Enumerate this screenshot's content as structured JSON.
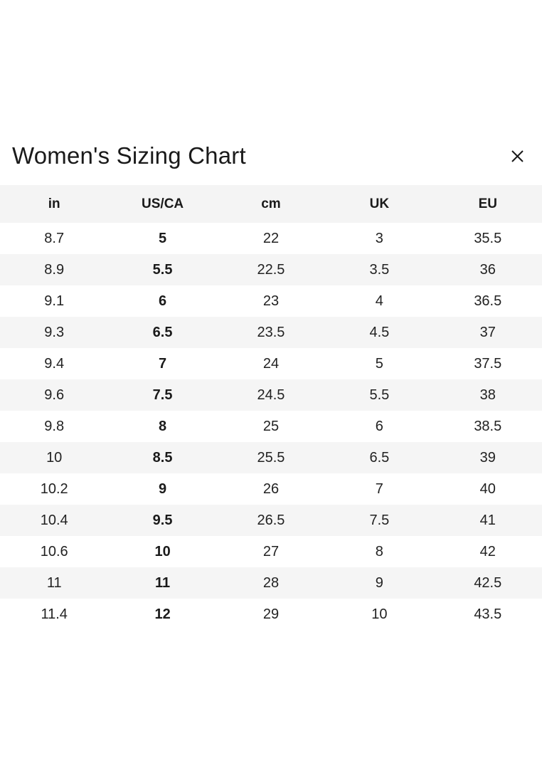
{
  "dialog": {
    "title": "Women's Sizing Chart"
  },
  "table": {
    "columns": [
      "in",
      "US/CA",
      "cm",
      "UK",
      "EU"
    ],
    "bold_column_index": 1,
    "rows": [
      [
        "8.7",
        "5",
        "22",
        "3",
        "35.5"
      ],
      [
        "8.9",
        "5.5",
        "22.5",
        "3.5",
        "36"
      ],
      [
        "9.1",
        "6",
        "23",
        "4",
        "36.5"
      ],
      [
        "9.3",
        "6.5",
        "23.5",
        "4.5",
        "37"
      ],
      [
        "9.4",
        "7",
        "24",
        "5",
        "37.5"
      ],
      [
        "9.6",
        "7.5",
        "24.5",
        "5.5",
        "38"
      ],
      [
        "9.8",
        "8",
        "25",
        "6",
        "38.5"
      ],
      [
        "10",
        "8.5",
        "25.5",
        "6.5",
        "39"
      ],
      [
        "10.2",
        "9",
        "26",
        "7",
        "40"
      ],
      [
        "10.4",
        "9.5",
        "26.5",
        "7.5",
        "41"
      ],
      [
        "10.6",
        "10",
        "27",
        "8",
        "42"
      ],
      [
        "11",
        "11",
        "28",
        "9",
        "42.5"
      ],
      [
        "11.4",
        "12",
        "29",
        "10",
        "43.5"
      ]
    ]
  },
  "colors": {
    "header_bg": "#f4f4f4",
    "stripe_bg": "#f5f5f5",
    "text": "#1a1a1a"
  }
}
